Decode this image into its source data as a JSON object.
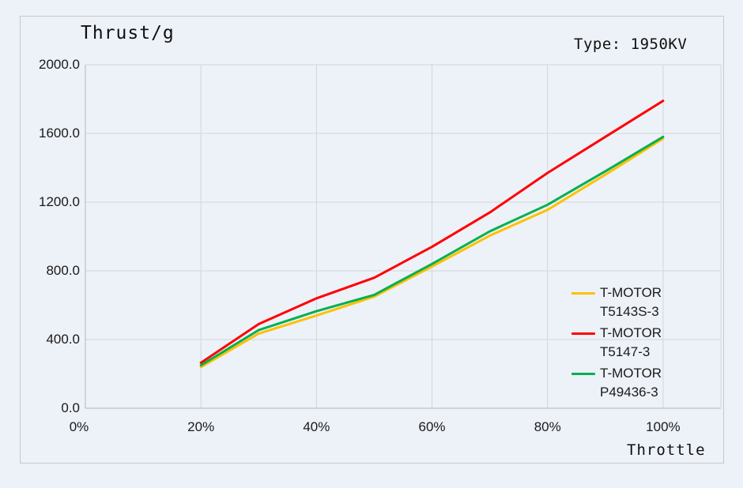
{
  "header": {
    "title": "Thrust/g",
    "type_label": "Type: 1950KV"
  },
  "chart_data": {
    "type": "line",
    "title": "Thrust/g",
    "annotation": "Type: 1950KV",
    "xlabel": "Throttle",
    "ylabel": "Thrust/g",
    "xlim": [
      0,
      110
    ],
    "ylim": [
      0,
      2000
    ],
    "grid": true,
    "legend_position": "right",
    "x_ticks": [
      {
        "value": 0,
        "label": "0%"
      },
      {
        "value": 20,
        "label": "20%"
      },
      {
        "value": 40,
        "label": "40%"
      },
      {
        "value": 60,
        "label": "60%"
      },
      {
        "value": 80,
        "label": "80%"
      },
      {
        "value": 100,
        "label": "100%"
      }
    ],
    "y_ticks": [
      {
        "value": 2000,
        "label": "2000.0"
      },
      {
        "value": 1600,
        "label": "1600.0"
      },
      {
        "value": 1200,
        "label": "1200.0"
      },
      {
        "value": 800,
        "label": "800.0"
      },
      {
        "value": 400,
        "label": "400.0"
      },
      {
        "value": 0,
        "label": "0.0"
      }
    ],
    "x": [
      20,
      30,
      40,
      50,
      60,
      70,
      80,
      90,
      100
    ],
    "series": [
      {
        "name": "T-MOTOR T5143S-3",
        "label_lines": "T-MOTOR\nT5143S-3",
        "color": "#FFC000",
        "values": [
          240,
          435,
          540,
          650,
          825,
          1005,
          1155,
          1360,
          1570
        ]
      },
      {
        "name": "T-MOTOR T5147-3",
        "label_lines": "T-MOTOR\nT5147-3",
        "color": "#FF0000",
        "values": [
          265,
          490,
          640,
          760,
          940,
          1140,
          1370,
          1580,
          1790
        ]
      },
      {
        "name": "T-MOTOR P49436-3",
        "label_lines": "T-MOTOR\nP49436-3",
        "color": "#00B050",
        "values": [
          250,
          455,
          565,
          660,
          840,
          1030,
          1185,
          1380,
          1580
        ]
      }
    ],
    "colors": {
      "background": "#edf1f8",
      "panel_border": "#c6c8cb",
      "gridline": "#d3d7dc",
      "axis_line": "#b2b6bc",
      "text": "#101010"
    }
  }
}
